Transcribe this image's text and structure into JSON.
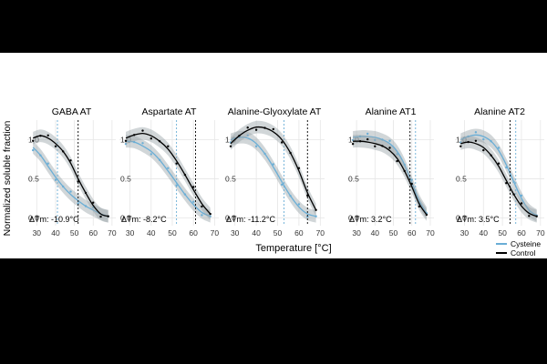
{
  "figure": {
    "ylabel": "Normalized soluble fraction",
    "xlabel": "Temperature [°C]",
    "legend": {
      "placement": "bottom-right",
      "entries": [
        {
          "name": "Cysteine",
          "color": "#6aaed6"
        },
        {
          "name": "Control",
          "color": "#000000"
        }
      ]
    }
  },
  "chart_data": [
    {
      "type": "line",
      "title": "GABA AT",
      "xlim": [
        25,
        72
      ],
      "ylim": [
        -0.1,
        1.25
      ],
      "xticks": [
        30,
        40,
        50,
        60,
        70
      ],
      "yticks": [
        0.0,
        0.5,
        1.0
      ],
      "yticklabels": [
        "0.0",
        "0.5",
        "1.0"
      ],
      "annotation": "ΔTm: -10.9°C",
      "tm": {
        "Cysteine": 41,
        "Control": 52
      },
      "series": [
        {
          "name": "Cysteine",
          "x": [
            28,
            32,
            36,
            40,
            44,
            48,
            52,
            56,
            60,
            64,
            68
          ],
          "y": [
            0.9,
            0.8,
            0.66,
            0.52,
            0.4,
            0.3,
            0.22,
            0.15,
            0.1,
            0.05,
            0.02
          ]
        },
        {
          "name": "Control",
          "x": [
            28,
            32,
            36,
            40,
            44,
            48,
            52,
            56,
            60,
            64,
            68
          ],
          "y": [
            1.02,
            1.05,
            1.02,
            0.95,
            0.85,
            0.7,
            0.5,
            0.32,
            0.16,
            0.05,
            0.02
          ]
        }
      ]
    },
    {
      "type": "line",
      "title": "Aspartate AT",
      "xlim": [
        25,
        72
      ],
      "ylim": [
        -0.1,
        1.25
      ],
      "xticks": [
        30,
        40,
        50,
        60,
        70
      ],
      "yticks": [
        0.0,
        0.5,
        1.0
      ],
      "yticklabels": [
        "0.0",
        "0.5",
        "1.0"
      ],
      "annotation": "ΔTm: -8.2°C",
      "tm": {
        "Cysteine": 52,
        "Control": 61
      },
      "series": [
        {
          "name": "Cysteine",
          "x": [
            28,
            32,
            36,
            40,
            44,
            48,
            52,
            56,
            60,
            64,
            68
          ],
          "y": [
            0.98,
            0.97,
            0.92,
            0.85,
            0.74,
            0.6,
            0.45,
            0.3,
            0.17,
            0.07,
            0.02
          ]
        },
        {
          "name": "Control",
          "x": [
            28,
            32,
            36,
            40,
            44,
            48,
            52,
            56,
            60,
            64,
            68
          ],
          "y": [
            1.02,
            1.06,
            1.08,
            1.05,
            0.98,
            0.88,
            0.73,
            0.55,
            0.36,
            0.18,
            0.05
          ]
        }
      ]
    },
    {
      "type": "line",
      "title": "Alanine-Glyoxylate AT",
      "xlim": [
        25,
        72
      ],
      "ylim": [
        -0.1,
        1.25
      ],
      "xticks": [
        30,
        40,
        50,
        60,
        70
      ],
      "yticks": [
        0.0,
        0.5,
        1.0
      ],
      "yticklabels": [
        "0.0",
        "0.5",
        "1.0"
      ],
      "annotation": "ΔTm: -11.2°C",
      "tm": {
        "Cysteine": 53,
        "Control": 64
      },
      "series": [
        {
          "name": "Cysteine",
          "x": [
            28,
            32,
            36,
            40,
            44,
            48,
            52,
            56,
            60,
            64,
            68
          ],
          "y": [
            1.0,
            1.03,
            1.02,
            0.95,
            0.82,
            0.65,
            0.46,
            0.28,
            0.14,
            0.05,
            0.02
          ]
        },
        {
          "name": "Control",
          "x": [
            28,
            32,
            36,
            40,
            44,
            48,
            52,
            56,
            60,
            64,
            68
          ],
          "y": [
            0.95,
            1.05,
            1.12,
            1.16,
            1.15,
            1.1,
            1.0,
            0.83,
            0.6,
            0.32,
            0.1
          ]
        }
      ]
    },
    {
      "type": "line",
      "title": "Alanine AT1",
      "xlim": [
        25,
        72
      ],
      "ylim": [
        -0.1,
        1.25
      ],
      "xticks": [
        30,
        40,
        50,
        60,
        70
      ],
      "yticks": [
        0.0,
        0.5,
        1.0
      ],
      "yticklabels": [
        "0.0",
        "0.5",
        "1.0"
      ],
      "annotation": "ΔTm: 3.2°C",
      "tm": {
        "Cysteine": 62,
        "Control": 59
      },
      "series": [
        {
          "name": "Cysteine",
          "x": [
            28,
            32,
            36,
            40,
            44,
            48,
            52,
            56,
            60,
            64,
            68
          ],
          "y": [
            1.03,
            1.04,
            1.04,
            1.03,
            1.0,
            0.95,
            0.85,
            0.68,
            0.45,
            0.22,
            0.06
          ]
        },
        {
          "name": "Control",
          "x": [
            28,
            32,
            36,
            40,
            44,
            48,
            52,
            56,
            60,
            64,
            68
          ],
          "y": [
            0.98,
            0.98,
            0.97,
            0.95,
            0.92,
            0.86,
            0.76,
            0.6,
            0.4,
            0.18,
            0.04
          ]
        }
      ]
    },
    {
      "type": "line",
      "title": "Alanine AT2",
      "xlim": [
        25,
        72
      ],
      "ylim": [
        -0.1,
        1.25
      ],
      "xticks": [
        30,
        40,
        50,
        60,
        70
      ],
      "yticks": [
        0.0,
        0.5,
        1.0
      ],
      "yticklabels": [
        "0.0",
        "0.5",
        "1.0"
      ],
      "annotation": "ΔTm: 3.5°C",
      "tm": {
        "Cysteine": 57,
        "Control": 54
      },
      "series": [
        {
          "name": "Cysteine",
          "x": [
            28,
            32,
            36,
            40,
            44,
            48,
            52,
            56,
            60,
            64,
            68
          ],
          "y": [
            1.0,
            1.04,
            1.06,
            1.04,
            0.98,
            0.86,
            0.68,
            0.46,
            0.25,
            0.1,
            0.03
          ]
        },
        {
          "name": "Control",
          "x": [
            28,
            32,
            36,
            40,
            44,
            48,
            52,
            56,
            60,
            64,
            68
          ],
          "y": [
            0.95,
            0.97,
            0.95,
            0.9,
            0.8,
            0.66,
            0.48,
            0.3,
            0.15,
            0.06,
            0.02
          ]
        }
      ]
    }
  ]
}
